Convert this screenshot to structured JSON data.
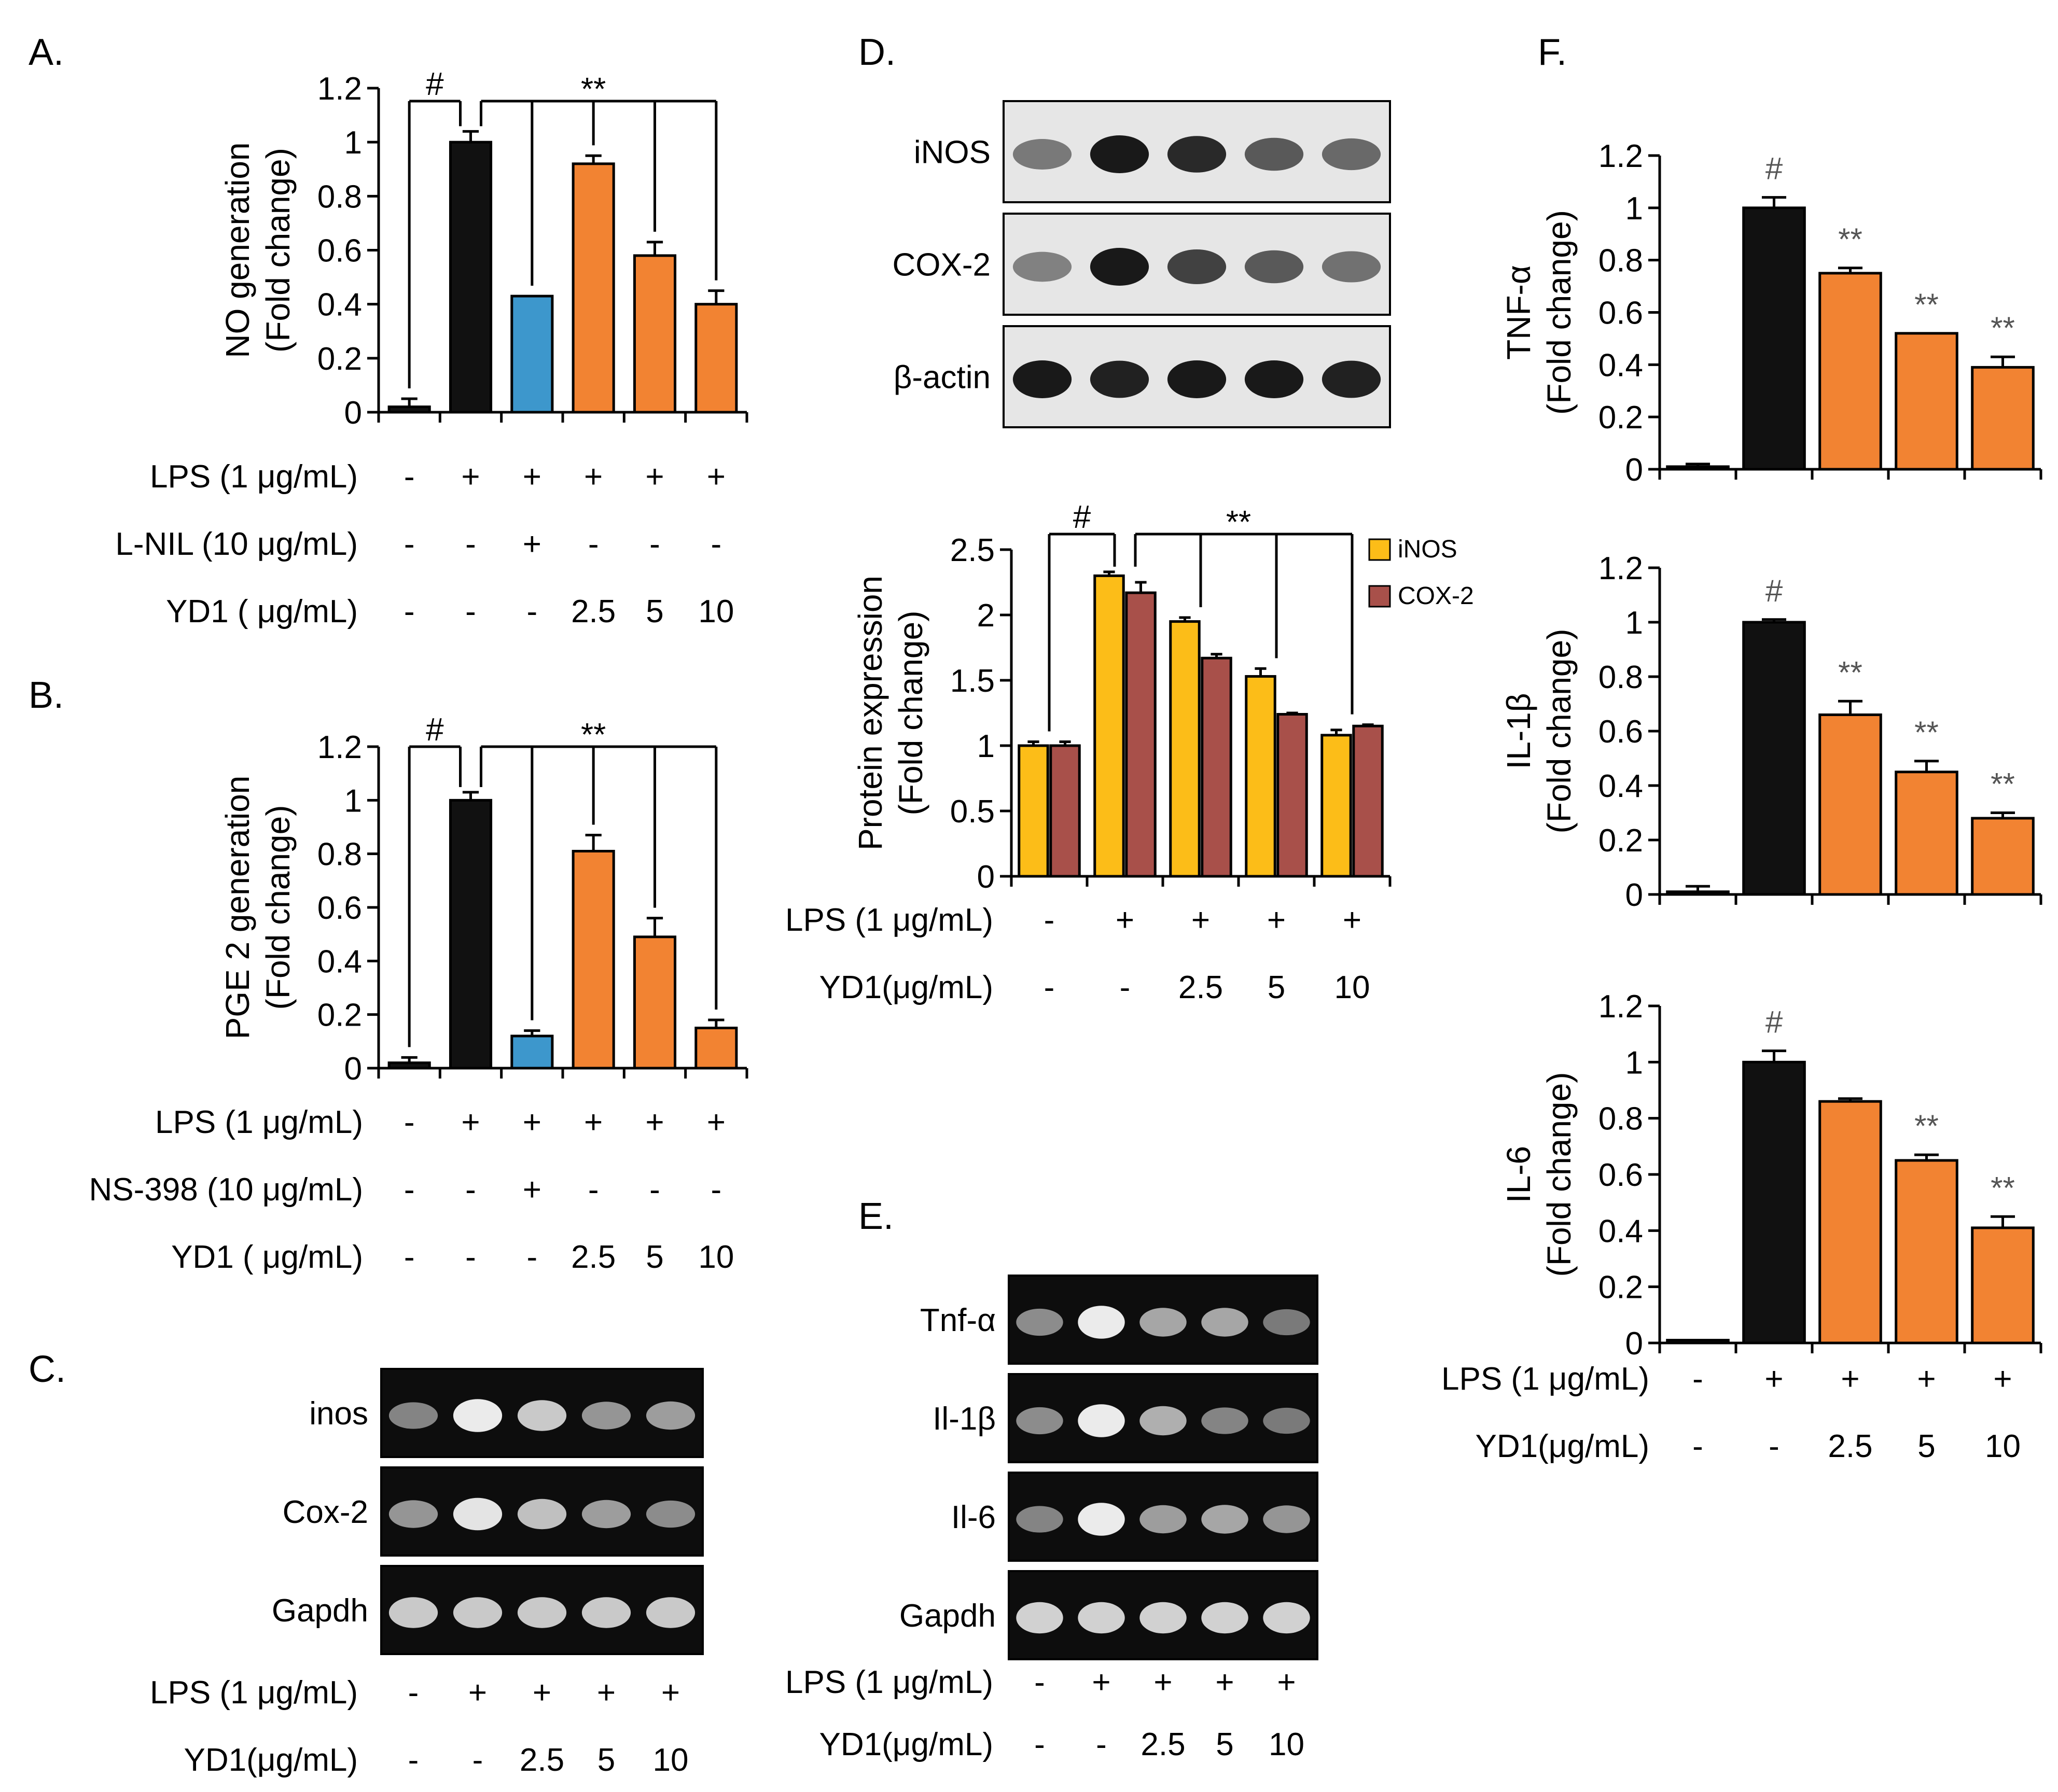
{
  "colors": {
    "black": "#111111",
    "blue": "#3d97cc",
    "orange": "#f28332",
    "yellow": "#fcbd18",
    "brown": "#a8504a",
    "gel_bg": "#0d0d0d",
    "blot_bg": "#e6e6e6"
  },
  "panels": {
    "A": {
      "label": "A.",
      "conditions": [
        {
          "name": "LPS (1 μg/mL)",
          "values": [
            "-",
            "+",
            "+",
            "+",
            "+",
            "+"
          ]
        },
        {
          "name": "L-NIL (10 μg/mL)",
          "values": [
            "-",
            "-",
            "+",
            "-",
            "-",
            "-"
          ]
        },
        {
          "name": "YD1 ( μg/mL)",
          "values": [
            "-",
            "-",
            "-",
            "2.5",
            "5",
            "10"
          ]
        }
      ]
    },
    "B": {
      "label": "B.",
      "conditions": [
        {
          "name": "LPS (1 μg/mL)",
          "values": [
            "-",
            "+",
            "+",
            "+",
            "+",
            "+"
          ]
        },
        {
          "name": "NS-398 (10 μg/mL)",
          "values": [
            "-",
            "-",
            "+",
            "-",
            "-",
            "-"
          ]
        },
        {
          "name": "YD1 ( μg/mL)",
          "values": [
            "-",
            "-",
            "-",
            "2.5",
            "5",
            "10"
          ]
        }
      ]
    },
    "C": {
      "label": "C.",
      "bands": [
        "inos",
        "Cox-2",
        "Gapdh"
      ],
      "conditions": [
        {
          "name": "LPS (1 μg/mL)",
          "values": [
            "-",
            "+",
            "+",
            "+",
            "+"
          ]
        },
        {
          "name": "YD1(μg/mL)",
          "values": [
            "-",
            "-",
            "2.5",
            "5",
            "10"
          ]
        }
      ]
    },
    "D": {
      "label": "D.",
      "bands": [
        "iNOS",
        "COX-2",
        "β-actin"
      ],
      "conditions": [
        {
          "name": "LPS (1 μg/mL)",
          "values": [
            "-",
            "+",
            "+",
            "+",
            "+"
          ]
        },
        {
          "name": "YD1(μg/mL)",
          "values": [
            "-",
            "-",
            "2.5",
            "5",
            "10"
          ]
        }
      ]
    },
    "E": {
      "label": "E.",
      "bands": [
        "Tnf-α",
        "Il-1β",
        "Il-6",
        "Gapdh"
      ],
      "conditions": [
        {
          "name": "LPS (1 μg/mL)",
          "values": [
            "-",
            "+",
            "+",
            "+",
            "+"
          ]
        },
        {
          "name": "YD1(μg/mL)",
          "values": [
            "-",
            "-",
            "2.5",
            "5",
            "10"
          ]
        }
      ]
    },
    "F": {
      "label": "F.",
      "conditions": [
        {
          "name": "LPS (1 μg/mL)",
          "values": [
            "-",
            "+",
            "+",
            "+",
            "+"
          ]
        },
        {
          "name": "YD1(μg/mL)",
          "values": [
            "-",
            "-",
            "2.5",
            "5",
            "10"
          ]
        }
      ]
    }
  },
  "chart_data": [
    {
      "id": "A",
      "type": "bar",
      "title": "",
      "ylabel": [
        "NO generation",
        "(Fold change)"
      ],
      "ylim": [
        0,
        1.2
      ],
      "yticks": [
        "0",
        "0.2",
        "0.4",
        "0.6",
        "0.8",
        "1",
        "1.2"
      ],
      "values": [
        0.02,
        1.0,
        0.43,
        0.92,
        0.58,
        0.4
      ],
      "errors": [
        0.03,
        0.04,
        0.0,
        0.03,
        0.05,
        0.05
      ],
      "bar_colors": [
        "black",
        "black",
        "blue",
        "orange",
        "orange",
        "orange"
      ],
      "significance": [
        {
          "symbol": "#"
        },
        {
          "symbol": "**"
        }
      ]
    },
    {
      "id": "B",
      "type": "bar",
      "title": "",
      "ylabel": [
        "PGE 2 generation",
        "(Fold change)"
      ],
      "ylim": [
        0,
        1.2
      ],
      "yticks": [
        "0",
        "0.2",
        "0.4",
        "0.6",
        "0.8",
        "1",
        "1.2"
      ],
      "values": [
        0.02,
        1.0,
        0.12,
        0.81,
        0.49,
        0.15
      ],
      "errors": [
        0.02,
        0.03,
        0.02,
        0.06,
        0.07,
        0.03
      ],
      "bar_colors": [
        "black",
        "black",
        "blue",
        "orange",
        "orange",
        "orange"
      ],
      "significance": [
        {
          "symbol": "#"
        },
        {
          "symbol": "**"
        }
      ]
    },
    {
      "id": "D",
      "type": "bar",
      "title": "",
      "ylabel": [
        "Protein expression",
        "(Fold change)"
      ],
      "ylim": [
        0,
        2.5
      ],
      "yticks": [
        "0",
        "0.5",
        "1",
        "1.5",
        "2",
        "2.5"
      ],
      "series": [
        {
          "name": "iNOS",
          "color": "yellow",
          "values": [
            1.0,
            2.3,
            1.95,
            1.53,
            1.08
          ],
          "errors": [
            0.03,
            0.03,
            0.03,
            0.06,
            0.04
          ]
        },
        {
          "name": "COX-2",
          "color": "brown",
          "values": [
            1.0,
            2.17,
            1.67,
            1.24,
            1.15
          ],
          "errors": [
            0.03,
            0.08,
            0.03,
            0.01,
            0.01
          ]
        }
      ],
      "legend": [
        "iNOS",
        "COX-2"
      ],
      "significance": [
        {
          "symbol": "#"
        },
        {
          "symbol": "**"
        }
      ]
    },
    {
      "id": "F1",
      "type": "bar",
      "title": "",
      "ylabel": [
        "TNF-α",
        "(Fold change)"
      ],
      "ylim": [
        0,
        1.2
      ],
      "yticks": [
        "0",
        "0.2",
        "0.4",
        "0.6",
        "0.8",
        "1",
        "1.2"
      ],
      "values": [
        0.01,
        1.0,
        0.75,
        0.52,
        0.39
      ],
      "errors": [
        0.01,
        0.04,
        0.02,
        0.0,
        0.04
      ],
      "bar_colors": [
        "black",
        "black",
        "orange",
        "orange",
        "orange"
      ],
      "marks": [
        "",
        "#",
        "**",
        "**",
        "**"
      ]
    },
    {
      "id": "F2",
      "type": "bar",
      "title": "",
      "ylabel": [
        "IL-1β",
        "(Fold change)"
      ],
      "ylim": [
        0,
        1.2
      ],
      "yticks": [
        "0",
        "0.2",
        "0.4",
        "0.6",
        "0.8",
        "1",
        "1.2"
      ],
      "values": [
        0.01,
        1.0,
        0.66,
        0.45,
        0.28
      ],
      "errors": [
        0.02,
        0.01,
        0.05,
        0.04,
        0.02
      ],
      "bar_colors": [
        "black",
        "black",
        "orange",
        "orange",
        "orange"
      ],
      "marks": [
        "",
        "#",
        "**",
        "**",
        "**"
      ]
    },
    {
      "id": "F3",
      "type": "bar",
      "title": "",
      "ylabel": [
        "IL-6",
        "(Fold change)"
      ],
      "ylim": [
        0,
        1.2
      ],
      "yticks": [
        "0",
        "0.2",
        "0.4",
        "0.6",
        "0.8",
        "1",
        "1.2"
      ],
      "values": [
        0.01,
        1.0,
        0.86,
        0.65,
        0.41
      ],
      "errors": [
        0.0,
        0.04,
        0.01,
        0.02,
        0.04
      ],
      "bar_colors": [
        "black",
        "black",
        "orange",
        "orange",
        "orange"
      ],
      "marks": [
        "",
        "#",
        "",
        "**",
        "**"
      ]
    }
  ]
}
